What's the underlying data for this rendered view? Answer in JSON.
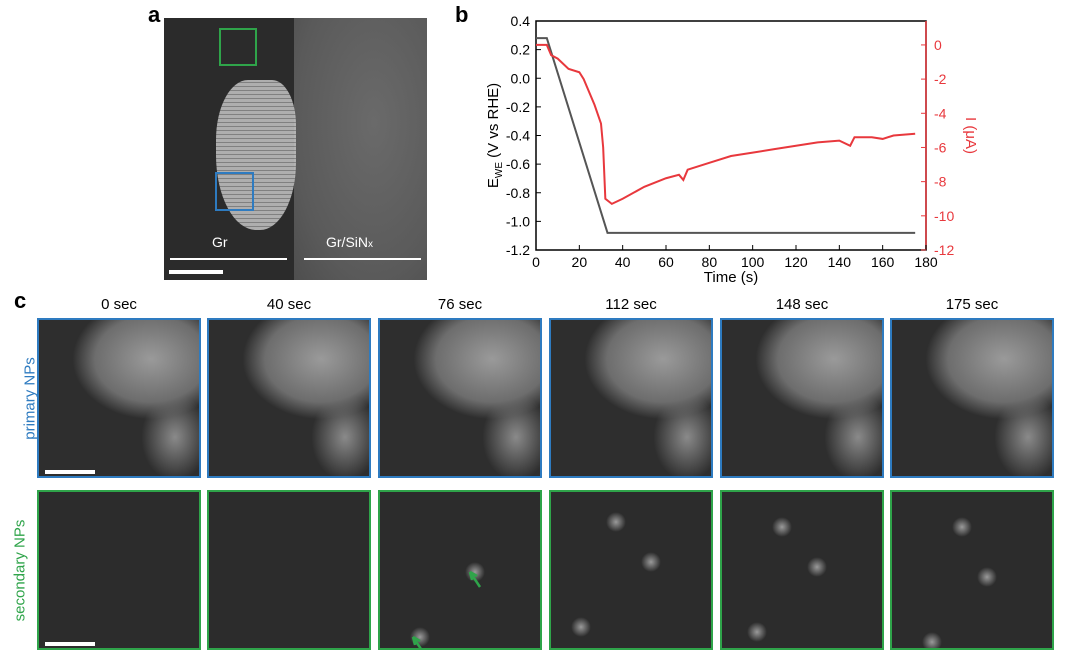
{
  "panel_labels": {
    "a": "a",
    "b": "b",
    "c": "c"
  },
  "panel_a": {
    "left_region": "Gr",
    "right_region": "Gr/SiN",
    "right_region_sub": "x",
    "colors": {
      "green_box": "#2fa44a",
      "blue_box": "#2e7bc0"
    }
  },
  "panel_c": {
    "times": [
      "0 sec",
      "40 sec",
      "76 sec",
      "112 sec",
      "148 sec",
      "175 sec"
    ],
    "rows": [
      {
        "label": "primary NPs",
        "color": "#2e7bc0"
      },
      {
        "label": "secondary NPs",
        "color": "#2fa44a"
      }
    ]
  },
  "chart_data": {
    "type": "line",
    "xlabel": "Time (s)",
    "ylabel": "E",
    "ylabel_sub": "WE",
    "ylabel_suffix": " (V vs RHE)",
    "y2label": "I (μA)",
    "xlim": [
      0,
      180
    ],
    "ylim": [
      -1.2,
      0.4
    ],
    "y2lim": [
      -12,
      1
    ],
    "xticks": [
      "0",
      "20",
      "40",
      "60",
      "80",
      "100",
      "120",
      "140",
      "160",
      "180"
    ],
    "yticks": [
      "0.4",
      "0.2",
      "0.0",
      "-0.2",
      "-0.4",
      "-0.6",
      "-0.8",
      "-1.0",
      "-1.2"
    ],
    "y2ticks": [
      "0",
      "-2",
      "-4",
      "-6",
      "-8",
      "-10",
      "-12"
    ],
    "series": [
      {
        "name": "E_WE",
        "axis": "left",
        "color": "#555555",
        "x": [
          0,
          5,
          33,
          175
        ],
        "y": [
          0.28,
          0.28,
          -1.08,
          -1.08
        ]
      },
      {
        "name": "I",
        "axis": "right",
        "color": "#e8383d",
        "x": [
          0,
          5,
          7,
          10,
          15,
          20,
          22,
          27,
          30,
          31,
          32,
          35,
          40,
          50,
          60,
          66,
          68,
          70,
          80,
          90,
          100,
          110,
          120,
          130,
          140,
          145,
          147,
          155,
          160,
          165,
          175
        ],
        "y": [
          0,
          0,
          -0.6,
          -0.8,
          -1.4,
          -1.6,
          -2,
          -3.5,
          -4.6,
          -6,
          -9,
          -9.3,
          -9,
          -8.3,
          -7.8,
          -7.6,
          -7.9,
          -7.3,
          -6.9,
          -6.5,
          -6.3,
          -6.1,
          -5.9,
          -5.7,
          -5.6,
          -5.9,
          -5.4,
          -5.4,
          -5.5,
          -5.3,
          -5.2
        ]
      }
    ]
  }
}
